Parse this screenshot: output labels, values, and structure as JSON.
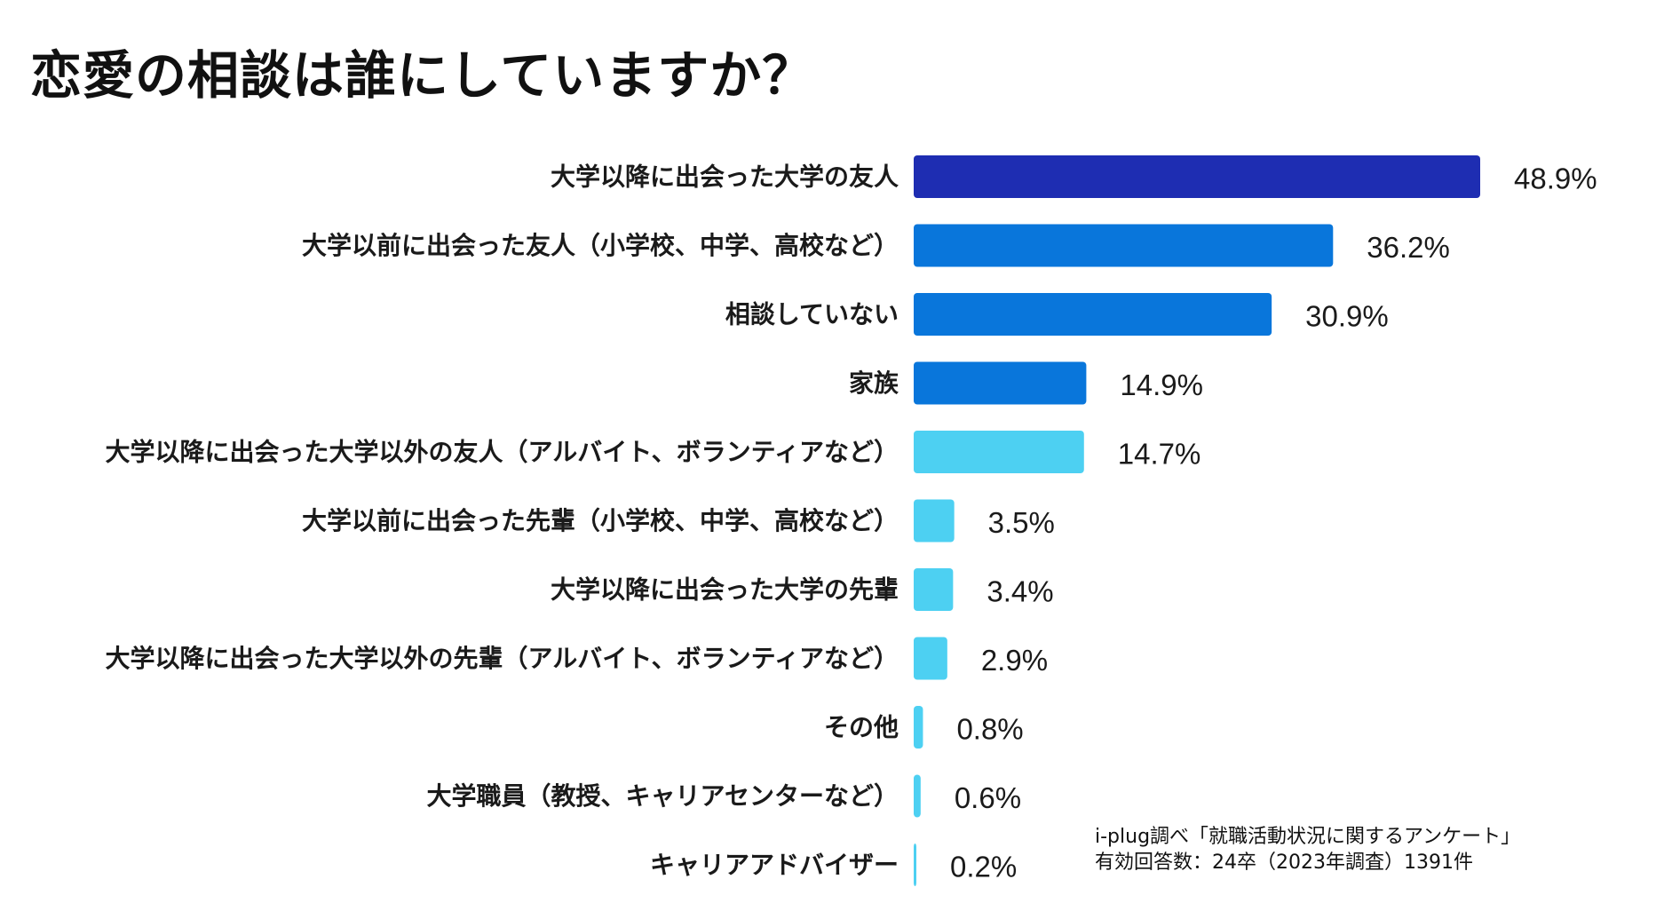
{
  "chart_data": {
    "type": "bar",
    "orientation": "horizontal",
    "title": "恋愛の相談は誰にしていますか？",
    "categories": [
      "大学以降に出会った大学の友人",
      "大学以前に出会った友人（小学校、中学、高校など）",
      "相談していない",
      "家族",
      "大学以降に出会った大学以外の友人（アルバイト、ボランティアなど）",
      "大学以前に出会った先輩（小学校、中学、高校など）",
      "大学以降に出会った大学の先輩",
      "大学以降に出会った大学以外の先輩（アルバイト、ボランティアなど）",
      "その他",
      "大学職員（教授、キャリアセンターなど）",
      "キャリアアドバイザー"
    ],
    "values": [
      48.9,
      36.2,
      30.9,
      14.9,
      14.7,
      3.5,
      3.4,
      2.9,
      0.8,
      0.6,
      0.2
    ],
    "value_labels": [
      "48.9%",
      "36.2%",
      "30.9%",
      "14.9%",
      "14.7%",
      "3.5%",
      "3.4%",
      "2.9%",
      "0.8%",
      "0.6%",
      "0.2%"
    ],
    "bar_colors": [
      "#1e2db2",
      "#0976db",
      "#0976db",
      "#0976db",
      "#4dd0f2",
      "#4dd0f2",
      "#4dd0f2",
      "#4dd0f2",
      "#4dd0f2",
      "#4dd0f2",
      "#4dd0f2"
    ],
    "xlim": [
      0,
      48.9
    ],
    "grid": false,
    "legend": "none"
  },
  "source": {
    "line1": "i-plug調べ「就職活動状況に関するアンケート」",
    "line2": "有効回答数：24卒（2023年調査）1391件"
  }
}
